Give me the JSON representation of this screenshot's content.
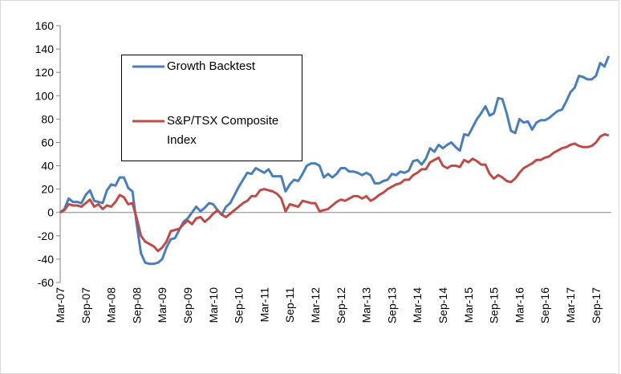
{
  "chart_data": {
    "type": "line",
    "categories": [
      "Mar-07",
      null,
      null,
      null,
      null,
      null,
      "Sep-07",
      null,
      null,
      null,
      null,
      null,
      "Mar-08",
      null,
      null,
      null,
      null,
      null,
      "Sep-08",
      null,
      null,
      null,
      null,
      null,
      "Mar-09",
      null,
      null,
      null,
      null,
      null,
      "Sep-09",
      null,
      null,
      null,
      null,
      null,
      "Mar-10",
      null,
      null,
      null,
      null,
      null,
      "Sep-10",
      null,
      null,
      null,
      null,
      null,
      "Mar-11",
      null,
      null,
      null,
      null,
      null,
      "Sep-11",
      null,
      null,
      null,
      null,
      null,
      "Mar-12",
      null,
      null,
      null,
      null,
      null,
      "Sep-12",
      null,
      null,
      null,
      null,
      null,
      "Mar-13",
      null,
      null,
      null,
      null,
      null,
      "Sep-13",
      null,
      null,
      null,
      null,
      null,
      "Mar-14",
      null,
      null,
      null,
      null,
      null,
      "Sep-14",
      null,
      null,
      null,
      null,
      null,
      "Mar-15",
      null,
      null,
      null,
      null,
      null,
      "Sep-15",
      null,
      null,
      null,
      null,
      null,
      "Mar-16",
      null,
      null,
      null,
      null,
      null,
      "Sep-16",
      null,
      null,
      null,
      null,
      null,
      "Mar-17",
      null,
      null,
      null,
      null,
      null,
      "Sep-17",
      null,
      null,
      null
    ],
    "series": [
      {
        "name": "Growth Backtest",
        "color": "#4a7ebb",
        "values": [
          0,
          3,
          12,
          9,
          9,
          8,
          15,
          19,
          10,
          9,
          8,
          19,
          24,
          23,
          30,
          30,
          21,
          18,
          -10,
          -35,
          -43,
          -44,
          -44,
          -43,
          -40,
          -30,
          -23,
          -22,
          -15,
          -8,
          -5,
          0,
          5,
          1,
          4,
          8,
          7,
          2,
          -2,
          5,
          8,
          15,
          22,
          28,
          34,
          33,
          38,
          36,
          34,
          37,
          31,
          31,
          31,
          18,
          24,
          28,
          27,
          33,
          40,
          42,
          42,
          40,
          30,
          33,
          30,
          33,
          38,
          38,
          35,
          35,
          34,
          32,
          34,
          32,
          25,
          25,
          27,
          28,
          33,
          32,
          35,
          34,
          36,
          44,
          45,
          41,
          46,
          55,
          52,
          58,
          55,
          58,
          60,
          56,
          53,
          67,
          66,
          73,
          80,
          85,
          91,
          83,
          85,
          98,
          97,
          85,
          70,
          68,
          80,
          77,
          78,
          71,
          77,
          79,
          79,
          81,
          84,
          87,
          88,
          95,
          103,
          107,
          117,
          116,
          114,
          114,
          117,
          128,
          125,
          134
        ]
      },
      {
        "name": "S&P/TSX Composite Index",
        "color": "#be4b48",
        "values": [
          0,
          2,
          7,
          6,
          6,
          5,
          8,
          11,
          5,
          7,
          3,
          6,
          5,
          9,
          15,
          13,
          7,
          8,
          -5,
          -20,
          -25,
          -27,
          -29,
          -33,
          -30,
          -25,
          -16,
          -15,
          -14,
          -10,
          -7,
          -10,
          -5,
          -4,
          -8,
          -5,
          -1,
          2,
          -2,
          -4,
          -1,
          2,
          5,
          8,
          10,
          14,
          14,
          19,
          20,
          19,
          18,
          16,
          12,
          1,
          7,
          6,
          5,
          10,
          9,
          8,
          8,
          1,
          2,
          3,
          6,
          9,
          11,
          10,
          12,
          14,
          14,
          12,
          14,
          10,
          12,
          15,
          17,
          20,
          22,
          24,
          25,
          28,
          28,
          32,
          34,
          37,
          37,
          43,
          45,
          47,
          40,
          38,
          40,
          40,
          39,
          45,
          43,
          46,
          44,
          41,
          41,
          33,
          29,
          32,
          30,
          27,
          26,
          29,
          34,
          38,
          40,
          42,
          45,
          45,
          47,
          48,
          51,
          53,
          55,
          56,
          58,
          59,
          57,
          56,
          56,
          57,
          60,
          65,
          67,
          66
        ]
      }
    ],
    "ylim": [
      -60,
      160
    ],
    "yticks": [
      -60,
      -40,
      -20,
      0,
      20,
      40,
      60,
      80,
      100,
      120,
      140,
      160
    ]
  }
}
